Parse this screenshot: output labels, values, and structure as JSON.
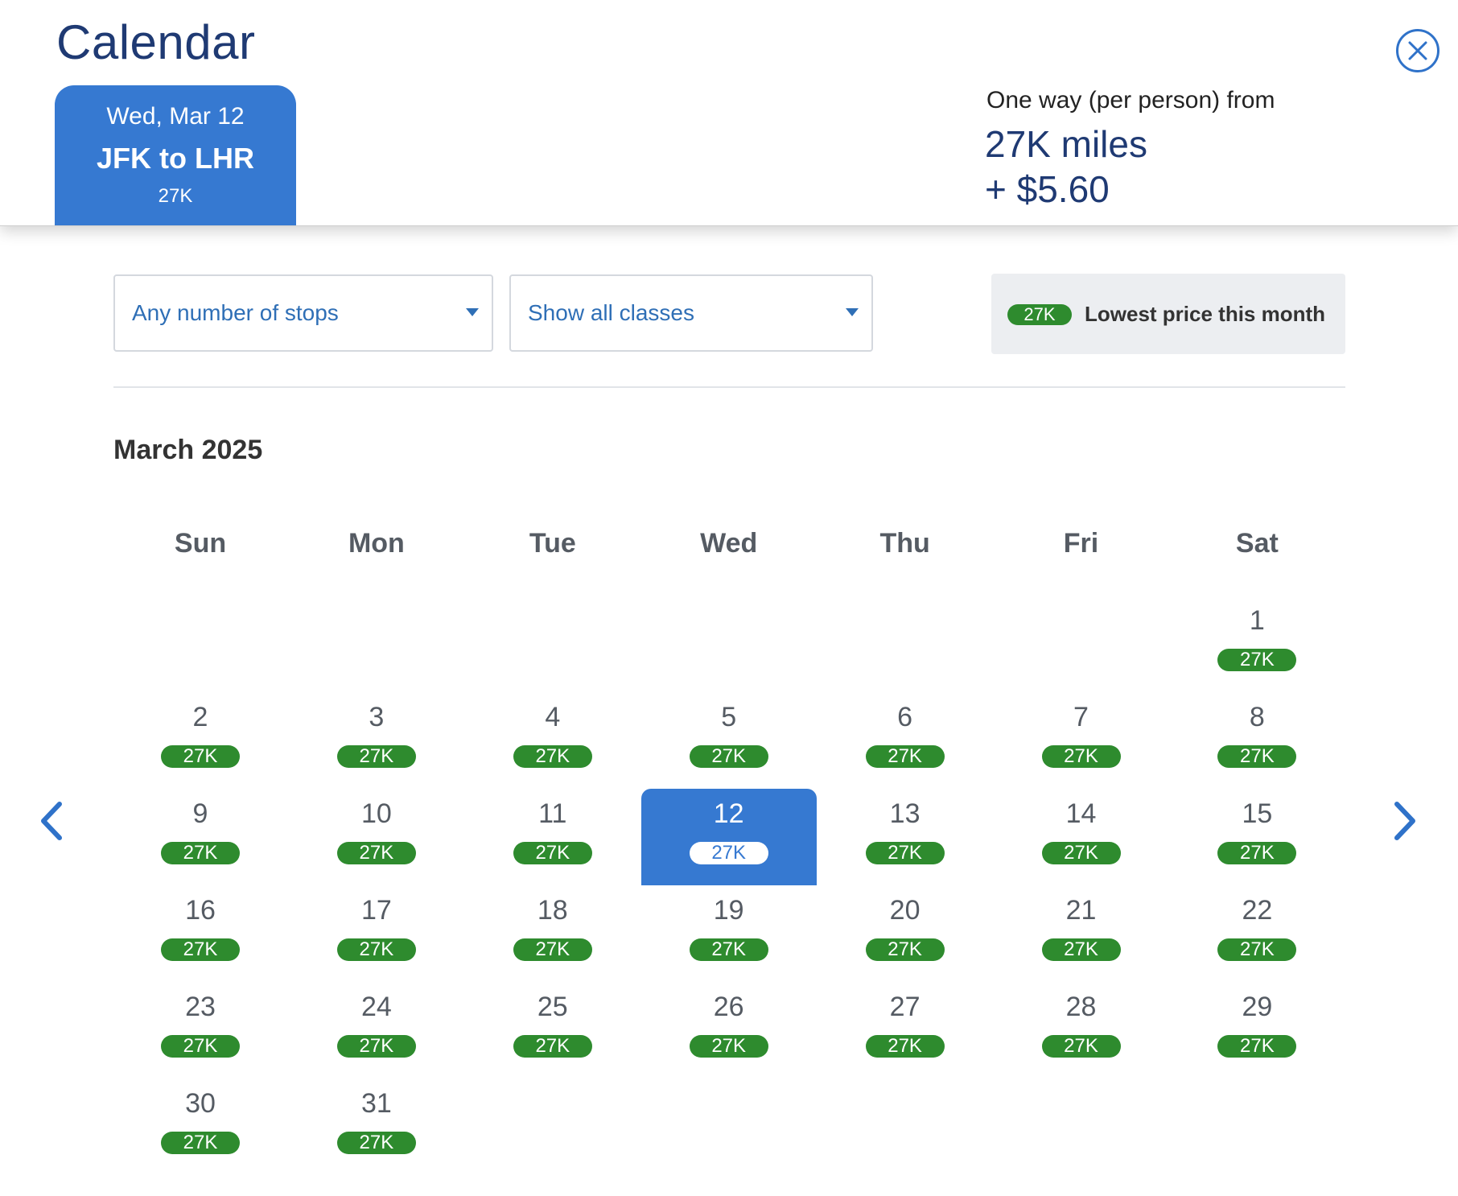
{
  "header": {
    "title": "Calendar",
    "close_icon": "close-circle-icon"
  },
  "trip_tab": {
    "date": "Wed, Mar 12",
    "route": "JFK to LHR",
    "price": "27K"
  },
  "fare": {
    "label": "One way (per person) from",
    "miles": "27K miles",
    "cash": "+ $5.60"
  },
  "filters": {
    "stops": "Any number of stops",
    "classes": "Show all classes"
  },
  "legend": {
    "pill": "27K",
    "text": "Lowest price this month",
    "color": "#2e8b2e"
  },
  "calendar": {
    "month": "March 2025",
    "weekdays": [
      "Sun",
      "Mon",
      "Tue",
      "Wed",
      "Thu",
      "Fri",
      "Sat"
    ],
    "first_weekday_index": 6,
    "selected_day": 12,
    "days": [
      {
        "day": "1",
        "price": "27K"
      },
      {
        "day": "2",
        "price": "27K"
      },
      {
        "day": "3",
        "price": "27K"
      },
      {
        "day": "4",
        "price": "27K"
      },
      {
        "day": "5",
        "price": "27K"
      },
      {
        "day": "6",
        "price": "27K"
      },
      {
        "day": "7",
        "price": "27K"
      },
      {
        "day": "8",
        "price": "27K"
      },
      {
        "day": "9",
        "price": "27K"
      },
      {
        "day": "10",
        "price": "27K"
      },
      {
        "day": "11",
        "price": "27K"
      },
      {
        "day": "12",
        "price": "27K"
      },
      {
        "day": "13",
        "price": "27K"
      },
      {
        "day": "14",
        "price": "27K"
      },
      {
        "day": "15",
        "price": "27K"
      },
      {
        "day": "16",
        "price": "27K"
      },
      {
        "day": "17",
        "price": "27K"
      },
      {
        "day": "18",
        "price": "27K"
      },
      {
        "day": "19",
        "price": "27K"
      },
      {
        "day": "20",
        "price": "27K"
      },
      {
        "day": "21",
        "price": "27K"
      },
      {
        "day": "22",
        "price": "27K"
      },
      {
        "day": "23",
        "price": "27K"
      },
      {
        "day": "24",
        "price": "27K"
      },
      {
        "day": "25",
        "price": "27K"
      },
      {
        "day": "26",
        "price": "27K"
      },
      {
        "day": "27",
        "price": "27K"
      },
      {
        "day": "28",
        "price": "27K"
      },
      {
        "day": "29",
        "price": "27K"
      },
      {
        "day": "30",
        "price": "27K"
      },
      {
        "day": "31",
        "price": "27K"
      }
    ]
  },
  "nav": {
    "prev_icon": "chevron-left-icon",
    "next_icon": "chevron-right-icon"
  },
  "colors": {
    "accent": "#3679d1",
    "title": "#1f3a73",
    "price_green": "#2e8b2e"
  }
}
